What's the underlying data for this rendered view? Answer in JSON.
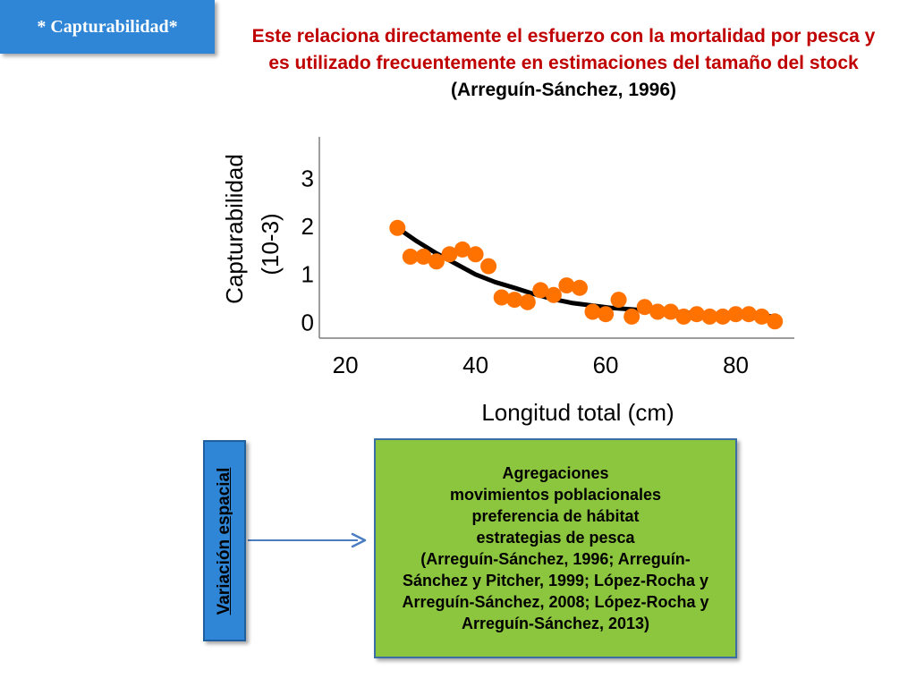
{
  "slide_tag": "* Capturabilidad*",
  "header": {
    "text_main": "Este relaciona directamente el esfuerzo con la mortalidad por pesca y es utilizado frecuentemente en estimaciones del tamaño del stock",
    "citation": "(Arreguín-Sánchez, 1996)"
  },
  "chart_data": {
    "type": "scatter",
    "ylabel_line1": "Capturabilidad",
    "ylabel_line2": "(10-3)",
    "xlabel": "Longitud total (cm)",
    "xlim": [
      16,
      89
    ],
    "ylim": [
      -0.35,
      3.85
    ],
    "xticks": [
      20,
      40,
      60,
      80
    ],
    "yticks": [
      0,
      1,
      2,
      3
    ],
    "point_color": "#ff7200",
    "line_color": "#000000",
    "series": [
      {
        "type": "scatter",
        "x": [
          28,
          30,
          32,
          34,
          36,
          38,
          40,
          42,
          44,
          46,
          48,
          50,
          52,
          54,
          56,
          58,
          60,
          62,
          64,
          66,
          68,
          70,
          72,
          74,
          76,
          78,
          80,
          82,
          84,
          86
        ],
        "y": [
          1.95,
          1.35,
          1.35,
          1.25,
          1.4,
          1.5,
          1.4,
          1.15,
          0.5,
          0.45,
          0.4,
          0.65,
          0.55,
          0.75,
          0.7,
          0.2,
          0.15,
          0.45,
          0.1,
          0.3,
          0.2,
          0.2,
          0.1,
          0.15,
          0.1,
          0.1,
          0.15,
          0.15,
          0.1,
          0.0
        ]
      },
      {
        "type": "line",
        "x": [
          28,
          31,
          34,
          37,
          40,
          43,
          46,
          49,
          52,
          55,
          58,
          61,
          64,
          67,
          70,
          73,
          76,
          79,
          82,
          86
        ],
        "y": [
          1.95,
          1.67,
          1.42,
          1.2,
          0.98,
          0.82,
          0.7,
          0.57,
          0.46,
          0.38,
          0.33,
          0.28,
          0.25,
          0.22,
          0.2,
          0.18,
          0.16,
          0.14,
          0.12,
          0.1
        ]
      }
    ]
  },
  "arrow_color": "#4a7ec1",
  "variation_box": {
    "label": "Variación espacial"
  },
  "factors_box": {
    "lines": [
      "Agregaciones",
      "movimientos poblacionales",
      "preferencia de hábitat",
      "estrategias de pesca",
      "(Arreguín-Sánchez, 1996; Arreguín-",
      "Sánchez y Pitcher, 1999; López-Rocha y",
      "Arreguín-Sánchez, 2008; López-Rocha y",
      "Arreguín-Sánchez, 2013)"
    ]
  }
}
